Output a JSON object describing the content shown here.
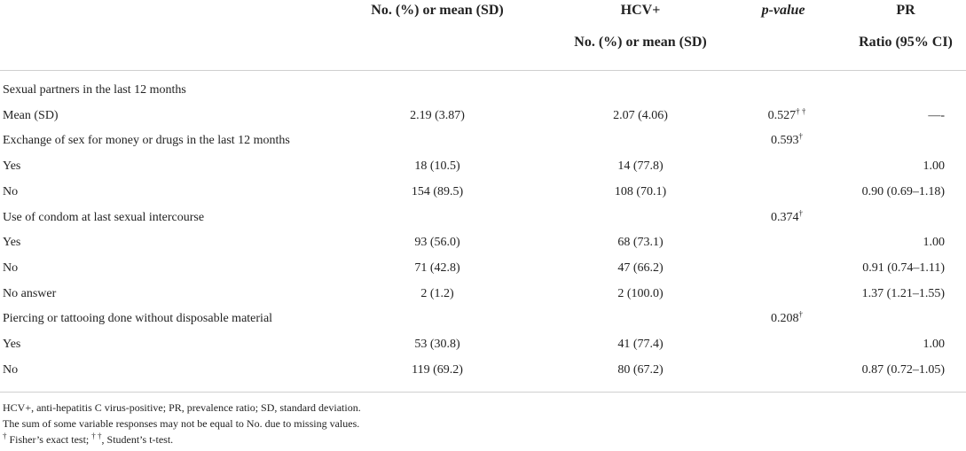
{
  "header": {
    "col_all": "No. (%) or mean (SD)",
    "col_hcv": "HCV+",
    "col_p": "p-value",
    "col_pr": "PR",
    "sub_hcv": "No. (%) or mean (SD)",
    "sub_pr": "Ratio (95% CI)"
  },
  "rows": [
    {
      "label": "Sexual partners in the last 12 months",
      "all": "",
      "hcv": "",
      "p": "",
      "p_sup": "",
      "pr": ""
    },
    {
      "label": "Mean (SD)",
      "all": "2.19 (3.87)",
      "hcv": "2.07 (4.06)",
      "p": "0.527",
      "p_sup": "† †",
      "pr": "—-"
    },
    {
      "label": "Exchange of sex for money or drugs in the last 12 months",
      "all": "",
      "hcv": "",
      "p": "0.593",
      "p_sup": "†",
      "pr": ""
    },
    {
      "label": "Yes",
      "all": "18 (10.5)",
      "hcv": "14 (77.8)",
      "p": "",
      "p_sup": "",
      "pr": "1.00"
    },
    {
      "label": "No",
      "all": "154 (89.5)",
      "hcv": "108 (70.1)",
      "p": "",
      "p_sup": "",
      "pr": "0.90 (0.69–1.18)"
    },
    {
      "label": "Use of condom at last sexual intercourse",
      "all": "",
      "hcv": "",
      "p": "0.374",
      "p_sup": "†",
      "pr": ""
    },
    {
      "label": "Yes",
      "all": "93 (56.0)",
      "hcv": "68 (73.1)",
      "p": "",
      "p_sup": "",
      "pr": "1.00"
    },
    {
      "label": "No",
      "all": "71 (42.8)",
      "hcv": "47 (66.2)",
      "p": "",
      "p_sup": "",
      "pr": "0.91 (0.74–1.11)"
    },
    {
      "label": "No answer",
      "all": "2 (1.2)",
      "hcv": "2 (100.0)",
      "p": "",
      "p_sup": "",
      "pr": "1.37 (1.21–1.55)"
    },
    {
      "label": "Piercing or tattooing done without disposable material",
      "all": "",
      "hcv": "",
      "p": "0.208",
      "p_sup": "†",
      "pr": ""
    },
    {
      "label": "Yes",
      "all": "53 (30.8)",
      "hcv": "41 (77.4)",
      "p": "",
      "p_sup": "",
      "pr": "1.00"
    },
    {
      "label": "No",
      "all": "119 (69.2)",
      "hcv": "80 (67.2)",
      "p": "",
      "p_sup": "",
      "pr": "0.87 (0.72–1.05)"
    }
  ],
  "footnotes": {
    "abbrev": "HCV+, anti-hepatitis C virus-positive; PR, prevalence ratio; SD, standard deviation.",
    "sum_note": "The sum of some variable responses may not be equal to No. due to missing values.",
    "test_sym1": "†",
    "test_text1": " Fisher’s exact test; ",
    "test_sym2": "† †",
    "test_text2": ", Student’s t-test."
  }
}
